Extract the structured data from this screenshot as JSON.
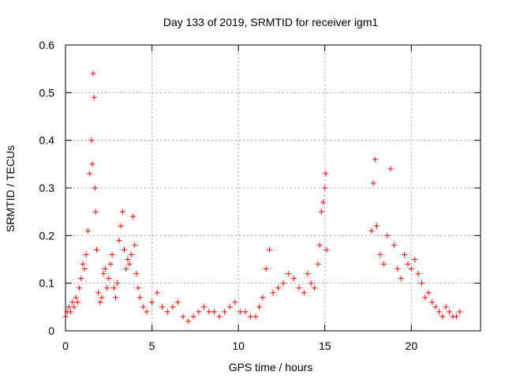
{
  "chart_data": {
    "type": "scatter",
    "title": "Day 133 of 2019, SRMTID for receiver igm1",
    "xlabel": "GPS time / hours",
    "ylabel": "SRMTID / TECUs",
    "xlim": [
      0,
      24
    ],
    "ylim": [
      0,
      0.6
    ],
    "xticks": [
      0,
      5,
      10,
      15,
      20
    ],
    "xtick_labels": [
      "0",
      "5",
      "10",
      "15",
      "20"
    ],
    "yticks": [
      0,
      0.1,
      0.2,
      0.3,
      0.4,
      0.5,
      0.6
    ],
    "ytick_labels": [
      "0",
      "0.1",
      "0.2",
      "0.3",
      "0.4",
      "0.5",
      "0.6"
    ],
    "grid": true,
    "marker": "+",
    "color": "#ff0000",
    "series": [
      {
        "name": "SRMTID",
        "x": [
          0.0,
          0.1,
          0.2,
          0.3,
          0.4,
          0.5,
          0.6,
          0.7,
          0.8,
          0.9,
          1.0,
          1.1,
          1.2,
          1.3,
          1.4,
          1.5,
          1.55,
          1.6,
          1.65,
          1.7,
          1.75,
          1.8,
          1.9,
          2.0,
          2.1,
          2.2,
          2.3,
          2.4,
          2.5,
          2.6,
          2.7,
          2.8,
          2.9,
          3.0,
          3.1,
          3.2,
          3.3,
          3.4,
          3.5,
          3.6,
          3.7,
          3.8,
          3.9,
          4.0,
          4.1,
          4.2,
          4.3,
          4.5,
          4.7,
          5.0,
          5.3,
          5.6,
          5.9,
          6.2,
          6.5,
          6.8,
          7.1,
          7.4,
          7.7,
          8.0,
          8.3,
          8.6,
          8.9,
          9.2,
          9.5,
          9.8,
          10.1,
          10.4,
          10.7,
          11.0,
          11.2,
          11.4,
          11.6,
          11.8,
          12.0,
          12.3,
          12.6,
          12.9,
          13.2,
          13.5,
          13.8,
          14.0,
          14.2,
          14.4,
          14.6,
          14.7,
          14.8,
          14.9,
          15.0,
          15.05,
          15.1,
          17.7,
          17.8,
          17.9,
          18.0,
          18.2,
          18.4,
          18.6,
          18.8,
          19.0,
          19.2,
          19.4,
          19.6,
          19.8,
          20.0,
          20.2,
          20.4,
          20.6,
          20.8,
          21.0,
          21.2,
          21.4,
          21.6,
          21.8,
          22.0,
          22.2,
          22.4,
          22.6,
          22.8
        ],
        "y": [
          0.03,
          0.04,
          0.05,
          0.04,
          0.06,
          0.05,
          0.07,
          0.06,
          0.09,
          0.11,
          0.14,
          0.13,
          0.16,
          0.21,
          0.33,
          0.4,
          0.35,
          0.54,
          0.49,
          0.3,
          0.25,
          0.17,
          0.08,
          0.06,
          0.07,
          0.12,
          0.13,
          0.09,
          0.11,
          0.14,
          0.16,
          0.09,
          0.07,
          0.1,
          0.19,
          0.22,
          0.25,
          0.17,
          0.13,
          0.15,
          0.14,
          0.16,
          0.24,
          0.18,
          0.12,
          0.09,
          0.07,
          0.05,
          0.04,
          0.06,
          0.08,
          0.05,
          0.04,
          0.05,
          0.06,
          0.03,
          0.02,
          0.03,
          0.04,
          0.05,
          0.04,
          0.04,
          0.03,
          0.04,
          0.05,
          0.06,
          0.04,
          0.04,
          0.03,
          0.03,
          0.05,
          0.07,
          0.13,
          0.17,
          0.08,
          0.09,
          0.1,
          0.12,
          0.11,
          0.09,
          0.08,
          0.12,
          0.1,
          0.09,
          0.14,
          0.18,
          0.25,
          0.27,
          0.3,
          0.33,
          0.17,
          0.21,
          0.31,
          0.36,
          0.22,
          0.16,
          0.14,
          0.2,
          0.34,
          0.18,
          0.13,
          0.11,
          0.16,
          0.14,
          0.13,
          0.15,
          0.12,
          0.1,
          0.07,
          0.08,
          0.06,
          0.05,
          0.04,
          0.03,
          0.05,
          0.04,
          0.03,
          0.03,
          0.04
        ]
      }
    ]
  }
}
